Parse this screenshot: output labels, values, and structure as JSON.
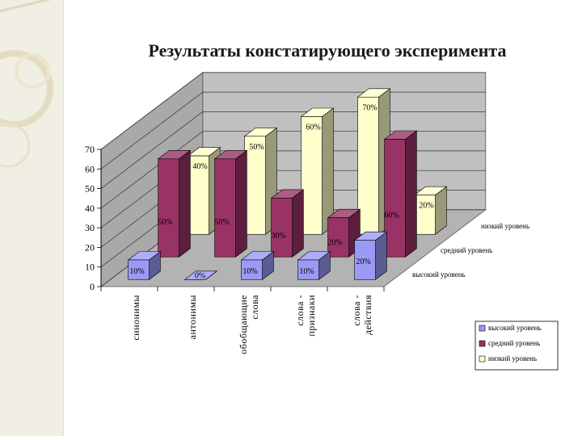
{
  "slide": {
    "title": "Результаты констатирующего эксперимента"
  },
  "chart_data": {
    "type": "bar",
    "title": "",
    "categories": [
      "синонимы",
      "антонимы",
      "обобщающие слова",
      "слова-признаки",
      "слова-действия"
    ],
    "category_label_lines": [
      [
        "синонимы"
      ],
      [
        "антонимы"
      ],
      [
        "обобщающие",
        "слова"
      ],
      [
        "слова -",
        "признаки"
      ],
      [
        "слова -",
        "действия"
      ]
    ],
    "series": [
      {
        "name": "высокий уровень",
        "values": [
          10,
          0,
          10,
          10,
          20
        ],
        "labels": [
          "10%",
          "0%",
          "10%",
          "10%",
          "20%"
        ],
        "color": "#9a9af6"
      },
      {
        "name": "средний уровень",
        "values": [
          50,
          50,
          30,
          20,
          60
        ],
        "labels": [
          "50%",
          "50%",
          "30%",
          "20%",
          "60%"
        ],
        "color": "#993366"
      },
      {
        "name": "низкий уровень",
        "values": [
          40,
          50,
          60,
          70,
          20
        ],
        "labels": [
          "40%",
          "50%",
          "60%",
          "70%",
          "20%"
        ],
        "color": "#ffffcc"
      }
    ],
    "depth_labels": [
      "высокий уровень",
      "средний уровень",
      "низкий уровень"
    ],
    "ylim": [
      0,
      70
    ],
    "yticks": [
      0,
      10,
      20,
      30,
      40,
      50,
      60,
      70
    ],
    "grid": true,
    "legend_position": "bottom-right",
    "chart3d": true
  }
}
